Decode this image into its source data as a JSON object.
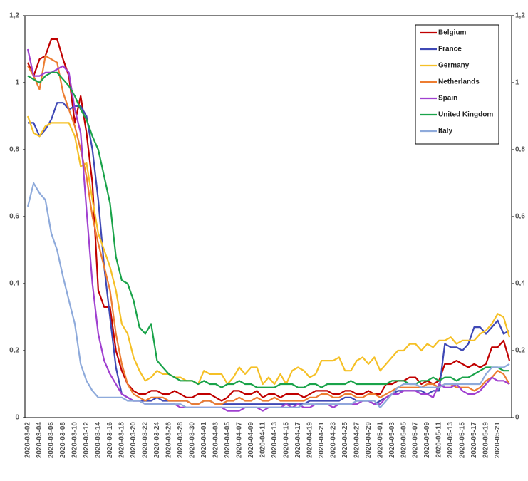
{
  "chart_data": {
    "type": "line",
    "categories": [
      "2020-03-02",
      null,
      "2020-03-04",
      null,
      "2020-03-06",
      null,
      "2020-03-08",
      null,
      "2020-03-10",
      null,
      "2020-03-12",
      null,
      "2020-03-14",
      null,
      "2020-03-16",
      null,
      "2020-03-18",
      null,
      "2020-03-20",
      null,
      "2020-03-22",
      null,
      "2020-03-24",
      null,
      "2020-03-26",
      null,
      "2020-03-28",
      null,
      "2020-03-30",
      null,
      "2020-04-01",
      null,
      "2020-04-03",
      null,
      "2020-04-05",
      null,
      "2020-04-07",
      null,
      "2020-04-09",
      null,
      "2020-04-11",
      null,
      "2020-04-13",
      null,
      "2020-04-15",
      null,
      "2020-04-17",
      null,
      "2020-04-19",
      null,
      "2020-04-21",
      null,
      "2020-04-23",
      null,
      "2020-04-25",
      null,
      "2020-04-27",
      null,
      "2020-04-29",
      null,
      "2020-05-01",
      null,
      "2020-05-03",
      null,
      "2020-05-05",
      null,
      "2020-05-07",
      null,
      "2020-05-09",
      null,
      "2020-05-11",
      null,
      "2020-05-13",
      null,
      "2020-05-15",
      null,
      "2020-05-17",
      null,
      "2020-05-19",
      null,
      "2020-05-21",
      null,
      null
    ],
    "series": [
      {
        "name": "Belgium",
        "color": "#c00000",
        "values": [
          1.06,
          1.02,
          1.07,
          1.08,
          1.13,
          1.13,
          1.07,
          1.02,
          0.88,
          0.96,
          0.85,
          0.7,
          0.38,
          0.33,
          0.33,
          0.2,
          0.14,
          0.1,
          0.08,
          0.07,
          0.07,
          0.08,
          0.08,
          0.07,
          0.07,
          0.08,
          0.07,
          0.06,
          0.06,
          0.07,
          0.07,
          0.07,
          0.06,
          0.05,
          0.06,
          0.08,
          0.08,
          0.07,
          0.07,
          0.08,
          0.06,
          0.07,
          0.07,
          0.06,
          0.07,
          0.07,
          0.07,
          0.06,
          0.07,
          0.08,
          0.08,
          0.08,
          0.07,
          0.07,
          0.08,
          0.08,
          0.07,
          0.07,
          0.08,
          0.07,
          0.07,
          0.1,
          0.1,
          0.11,
          0.11,
          0.12,
          0.12,
          0.1,
          0.11,
          0.1,
          0.11,
          0.16,
          0.16,
          0.17,
          0.16,
          0.15,
          0.16,
          0.15,
          0.16,
          0.21,
          0.21,
          0.23,
          0.17
        ]
      },
      {
        "name": "France",
        "color": "#3f48b5",
        "values": [
          0.88,
          0.88,
          0.84,
          0.86,
          0.89,
          0.94,
          0.94,
          0.92,
          0.93,
          0.93,
          0.9,
          0.8,
          0.65,
          0.45,
          0.3,
          0.15,
          0.07,
          0.06,
          0.05,
          0.05,
          0.05,
          0.05,
          0.06,
          0.05,
          0.05,
          0.05,
          0.05,
          0.05,
          0.04,
          0.04,
          0.05,
          0.05,
          0.04,
          0.04,
          0.04,
          0.04,
          0.04,
          0.04,
          0.04,
          0.04,
          0.04,
          0.04,
          0.04,
          0.04,
          0.04,
          0.04,
          0.04,
          0.04,
          0.05,
          0.05,
          0.05,
          0.05,
          0.05,
          0.05,
          0.06,
          0.06,
          0.05,
          0.05,
          0.05,
          0.04,
          0.05,
          0.06,
          0.07,
          0.08,
          0.08,
          0.08,
          0.08,
          0.08,
          0.07,
          0.08,
          0.08,
          0.22,
          0.21,
          0.21,
          0.2,
          0.22,
          0.27,
          0.27,
          0.25,
          0.27,
          0.29,
          0.25,
          0.26
        ]
      },
      {
        "name": "Germany",
        "color": "#f5c026",
        "values": [
          0.9,
          0.85,
          0.84,
          0.87,
          0.88,
          0.88,
          0.88,
          0.88,
          0.84,
          0.75,
          0.76,
          0.65,
          0.55,
          0.5,
          0.45,
          0.38,
          0.28,
          0.25,
          0.18,
          0.14,
          0.11,
          0.12,
          0.14,
          0.13,
          0.13,
          0.12,
          0.12,
          0.11,
          0.11,
          0.1,
          0.14,
          0.13,
          0.13,
          0.13,
          0.1,
          0.12,
          0.15,
          0.13,
          0.15,
          0.15,
          0.1,
          0.12,
          0.1,
          0.13,
          0.1,
          0.14,
          0.15,
          0.14,
          0.12,
          0.13,
          0.17,
          0.17,
          0.17,
          0.18,
          0.14,
          0.14,
          0.17,
          0.18,
          0.16,
          0.18,
          0.14,
          0.16,
          0.18,
          0.2,
          0.2,
          0.22,
          0.22,
          0.2,
          0.22,
          0.21,
          0.23,
          0.23,
          0.24,
          0.22,
          0.23,
          0.23,
          0.23,
          0.25,
          0.26,
          0.28,
          0.31,
          0.3,
          0.24
        ]
      },
      {
        "name": "Netherlands",
        "color": "#ed7d31",
        "values": [
          1.05,
          1.02,
          0.98,
          1.08,
          1.07,
          1.06,
          0.97,
          0.92,
          0.87,
          0.8,
          0.72,
          0.6,
          0.52,
          0.45,
          0.38,
          0.25,
          0.16,
          0.1,
          0.07,
          0.06,
          0.05,
          0.06,
          0.06,
          0.06,
          0.05,
          0.05,
          0.05,
          0.05,
          0.04,
          0.04,
          0.05,
          0.05,
          0.04,
          0.04,
          0.05,
          0.05,
          0.06,
          0.05,
          0.05,
          0.06,
          0.05,
          0.05,
          0.06,
          0.05,
          0.05,
          0.05,
          0.05,
          0.05,
          0.06,
          0.06,
          0.07,
          0.07,
          0.06,
          0.06,
          0.07,
          0.07,
          0.06,
          0.06,
          0.07,
          0.07,
          0.06,
          0.07,
          0.08,
          0.09,
          0.09,
          0.09,
          0.09,
          0.09,
          0.1,
          0.1,
          0.09,
          0.1,
          0.1,
          0.09,
          0.09,
          0.09,
          0.08,
          0.09,
          0.11,
          0.12,
          0.14,
          0.13,
          0.1
        ]
      },
      {
        "name": "Spain",
        "color": "#a040d0",
        "values": [
          1.1,
          1.02,
          1.02,
          1.03,
          1.03,
          1.04,
          1.05,
          1.03,
          0.92,
          0.85,
          0.62,
          0.4,
          0.25,
          0.17,
          0.13,
          0.1,
          0.07,
          0.06,
          0.05,
          0.05,
          0.04,
          0.04,
          0.04,
          0.04,
          0.04,
          0.04,
          0.03,
          0.03,
          0.03,
          0.03,
          0.03,
          0.03,
          0.03,
          0.03,
          0.02,
          0.02,
          0.02,
          0.03,
          0.03,
          0.03,
          0.02,
          0.03,
          0.03,
          0.03,
          0.04,
          0.03,
          0.04,
          0.03,
          0.03,
          0.04,
          0.04,
          0.04,
          0.03,
          0.04,
          0.04,
          0.04,
          0.04,
          0.05,
          0.05,
          0.04,
          0.04,
          0.06,
          0.07,
          0.07,
          0.08,
          0.08,
          0.08,
          0.07,
          0.07,
          0.06,
          0.1,
          0.09,
          0.09,
          0.1,
          0.08,
          0.07,
          0.07,
          0.08,
          0.1,
          0.12,
          0.11,
          0.11,
          0.1
        ]
      },
      {
        "name": "United Kingdom",
        "color": "#1aa34a",
        "values": [
          1.02,
          1.01,
          1.0,
          1.02,
          1.03,
          1.03,
          1.01,
          0.99,
          0.96,
          0.92,
          0.89,
          0.84,
          0.8,
          0.72,
          0.64,
          0.48,
          0.41,
          0.4,
          0.35,
          0.27,
          0.25,
          0.28,
          0.17,
          0.15,
          0.13,
          0.12,
          0.11,
          0.11,
          0.11,
          0.1,
          0.11,
          0.1,
          0.1,
          0.09,
          0.1,
          0.1,
          0.11,
          0.1,
          0.1,
          0.09,
          0.09,
          0.09,
          0.09,
          0.1,
          0.1,
          0.1,
          0.09,
          0.09,
          0.1,
          0.1,
          0.09,
          0.1,
          0.1,
          0.1,
          0.1,
          0.11,
          0.1,
          0.1,
          0.1,
          0.1,
          0.1,
          0.1,
          0.11,
          0.11,
          0.11,
          0.1,
          0.1,
          0.11,
          0.11,
          0.12,
          0.11,
          0.12,
          0.12,
          0.11,
          0.12,
          0.12,
          0.13,
          0.14,
          0.15,
          0.15,
          0.15,
          0.14,
          0.14
        ]
      },
      {
        "name": "Italy",
        "color": "#8eaadb",
        "values": [
          0.63,
          0.7,
          0.67,
          0.65,
          0.55,
          0.5,
          0.42,
          0.35,
          0.28,
          0.16,
          0.11,
          0.08,
          0.06,
          0.06,
          0.06,
          0.06,
          0.06,
          0.05,
          0.05,
          0.05,
          0.04,
          0.04,
          0.04,
          0.04,
          0.04,
          0.04,
          0.04,
          0.03,
          0.03,
          0.03,
          0.03,
          0.03,
          0.03,
          0.03,
          0.03,
          0.03,
          0.03,
          0.03,
          0.03,
          0.03,
          0.03,
          0.03,
          0.03,
          0.03,
          0.03,
          0.03,
          0.03,
          0.04,
          0.04,
          0.04,
          0.04,
          0.04,
          0.04,
          0.04,
          0.04,
          0.04,
          0.05,
          0.05,
          0.05,
          0.05,
          0.03,
          0.05,
          0.07,
          0.09,
          0.1,
          0.1,
          0.1,
          0.09,
          0.09,
          0.09,
          0.09,
          0.1,
          0.1,
          0.1,
          0.1,
          0.1,
          0.1,
          0.1,
          0.13,
          0.15,
          0.15,
          0.15,
          0.16
        ]
      }
    ],
    "ylim": [
      0,
      1.2
    ],
    "yticks": [
      0,
      {
        "value": 0.2,
        "label": "0,2"
      },
      {
        "value": 0.4,
        "label": "0,4"
      },
      {
        "value": 0.6,
        "label": "0,6"
      },
      {
        "value": 0.8,
        "label": "0,8"
      },
      1,
      {
        "value": 1.2,
        "label": "1,2"
      }
    ],
    "y2lim": [
      0,
      1.2
    ],
    "y2ticks": [
      0,
      {
        "value": 0.2,
        "label": "0,2"
      },
      {
        "value": 0.4,
        "label": "0,4"
      },
      {
        "value": 0.6,
        "label": "0,6"
      },
      {
        "value": 0.8,
        "label": "0,8"
      },
      1,
      {
        "value": 1.2,
        "label": "1,2"
      }
    ],
    "legend": "upper right"
  }
}
